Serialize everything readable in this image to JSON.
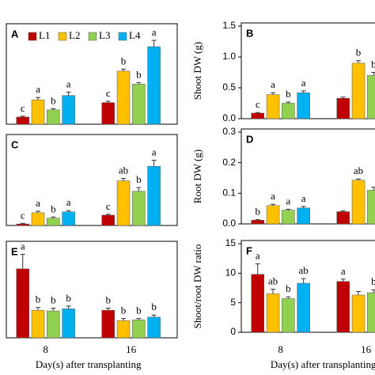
{
  "chart_data": [
    {
      "type": "bar",
      "panel": "A",
      "ylim": [
        0,
        3.5
      ],
      "series": [
        {
          "name": "L1",
          "color": "#c00000",
          "values": [
            0.25,
            0.75
          ],
          "errors": [
            0.03,
            0.05
          ],
          "letters": [
            "c",
            "c"
          ]
        },
        {
          "name": "L2",
          "color": "#ffc000",
          "values": [
            0.85,
            1.85
          ],
          "errors": [
            0.08,
            0.07
          ],
          "letters": [
            "a",
            "b"
          ]
        },
        {
          "name": "L3",
          "color": "#92d050",
          "values": [
            0.5,
            1.4
          ],
          "errors": [
            0.04,
            0.05
          ],
          "letters": [
            "b",
            "b"
          ]
        },
        {
          "name": "L4",
          "color": "#00b0f0",
          "values": [
            1.0,
            2.7
          ],
          "errors": [
            0.12,
            0.22
          ],
          "letters": [
            "a",
            "a"
          ]
        }
      ]
    },
    {
      "type": "bar",
      "panel": "B",
      "ylabel": "Shoot DW (g)",
      "ylim": [
        0,
        1.5
      ],
      "yticks": [
        {
          "value": 0,
          "label": "0.0"
        },
        0.5,
        {
          "value": 1,
          "label": "1.0"
        },
        1.5
      ],
      "series": [
        {
          "color": "#c00000",
          "values": [
            0.09,
            0.33
          ],
          "errors": [
            0.01,
            0.02
          ],
          "letters": [
            "c",
            null
          ]
        },
        {
          "color": "#ffc000",
          "values": [
            0.39,
            0.9
          ],
          "errors": [
            0.03,
            0.04
          ],
          "letters": [
            "a",
            "b"
          ]
        },
        {
          "color": "#92d050",
          "values": [
            0.25,
            0.7
          ],
          "errors": [
            0.02,
            0.05
          ],
          "letters": [
            "b",
            "b"
          ]
        },
        {
          "color": "#00b0f0",
          "values": [
            0.42,
            null
          ],
          "errors": [
            0.03,
            null
          ],
          "letters": [
            "a",
            null
          ]
        }
      ]
    },
    {
      "type": "bar",
      "panel": "C",
      "ylim": [
        0,
        3
      ],
      "series": [
        {
          "color": "#c00000",
          "values": [
            0.05,
            0.34
          ],
          "errors": [
            0.02,
            0.03
          ],
          "letters": [
            "c",
            "c"
          ]
        },
        {
          "color": "#ffc000",
          "values": [
            0.42,
            1.47
          ],
          "errors": [
            0.05,
            0.08
          ],
          "letters": [
            "a",
            "ab"
          ]
        },
        {
          "color": "#92d050",
          "values": [
            0.24,
            1.13
          ],
          "errors": [
            0.04,
            0.12
          ],
          "letters": [
            "b",
            "b"
          ]
        },
        {
          "color": "#00b0f0",
          "values": [
            0.45,
            1.95
          ],
          "errors": [
            0.04,
            0.2
          ],
          "letters": [
            "a",
            "a"
          ]
        }
      ]
    },
    {
      "type": "bar",
      "panel": "D",
      "ylabel": "Root DW (g)",
      "ylim": [
        0,
        0.3
      ],
      "yticks": [
        {
          "value": 0,
          "label": "0.0"
        },
        0.1,
        0.2,
        0.3
      ],
      "series": [
        {
          "color": "#c00000",
          "values": [
            0.012,
            0.04
          ],
          "errors": [
            0.002,
            0.003
          ],
          "letters": [
            "b",
            null
          ]
        },
        {
          "color": "#ffc000",
          "values": [
            0.06,
            0.143
          ],
          "errors": [
            0.004,
            0.004
          ],
          "letters": [
            "a",
            "ab"
          ]
        },
        {
          "color": "#92d050",
          "values": [
            0.045,
            0.11
          ],
          "errors": [
            0.003,
            0.01
          ],
          "letters": [
            "a",
            null
          ]
        },
        {
          "color": "#00b0f0",
          "values": [
            0.052,
            null
          ],
          "errors": [
            0.005,
            null
          ],
          "letters": [
            "a",
            null
          ]
        }
      ]
    },
    {
      "type": "bar",
      "panel": "E",
      "ylim": [
        0,
        14
      ],
      "categories": [
        "8",
        "16"
      ],
      "xlabel": "Day(s) after transplanting",
      "series": [
        {
          "color": "#c00000",
          "values": [
            10,
            4
          ],
          "errors": [
            2.1,
            0.3
          ],
          "letters": [
            "a",
            "b"
          ]
        },
        {
          "color": "#ffc000",
          "values": [
            4,
            2.5
          ],
          "errors": [
            0.4,
            0.3
          ],
          "letters": [
            "b",
            "b"
          ]
        },
        {
          "color": "#92d050",
          "values": [
            3.9,
            2.6
          ],
          "errors": [
            0.4,
            0.2
          ],
          "letters": [
            "b",
            "b"
          ]
        },
        {
          "color": "#00b0f0",
          "values": [
            4.2,
            3
          ],
          "errors": [
            0.4,
            0.3
          ],
          "letters": [
            "b",
            "b"
          ]
        }
      ]
    },
    {
      "type": "bar",
      "panel": "F",
      "ylabel": "Shoot/root DW ratio",
      "ylim": [
        0,
        15
      ],
      "yticks": [
        0,
        5,
        10,
        15
      ],
      "categories": [
        "8",
        "16"
      ],
      "xlabel": "Day(s) after transplanting",
      "series": [
        {
          "color": "#c00000",
          "values": [
            9.8,
            8.6
          ],
          "errors": [
            1.8,
            0.4
          ],
          "letters": [
            "a",
            "a"
          ]
        },
        {
          "color": "#ffc000",
          "values": [
            6.5,
            6.3
          ],
          "errors": [
            0.8,
            0.6
          ],
          "letters": [
            "ab",
            null
          ]
        },
        {
          "color": "#92d050",
          "values": [
            5.7,
            6.7
          ],
          "errors": [
            0.3,
            0.5
          ],
          "letters": [
            "b",
            "b"
          ]
        },
        {
          "color": "#00b0f0",
          "values": [
            8.3,
            null
          ],
          "errors": [
            0.8,
            null
          ],
          "letters": [
            "ab",
            null
          ]
        }
      ]
    }
  ]
}
